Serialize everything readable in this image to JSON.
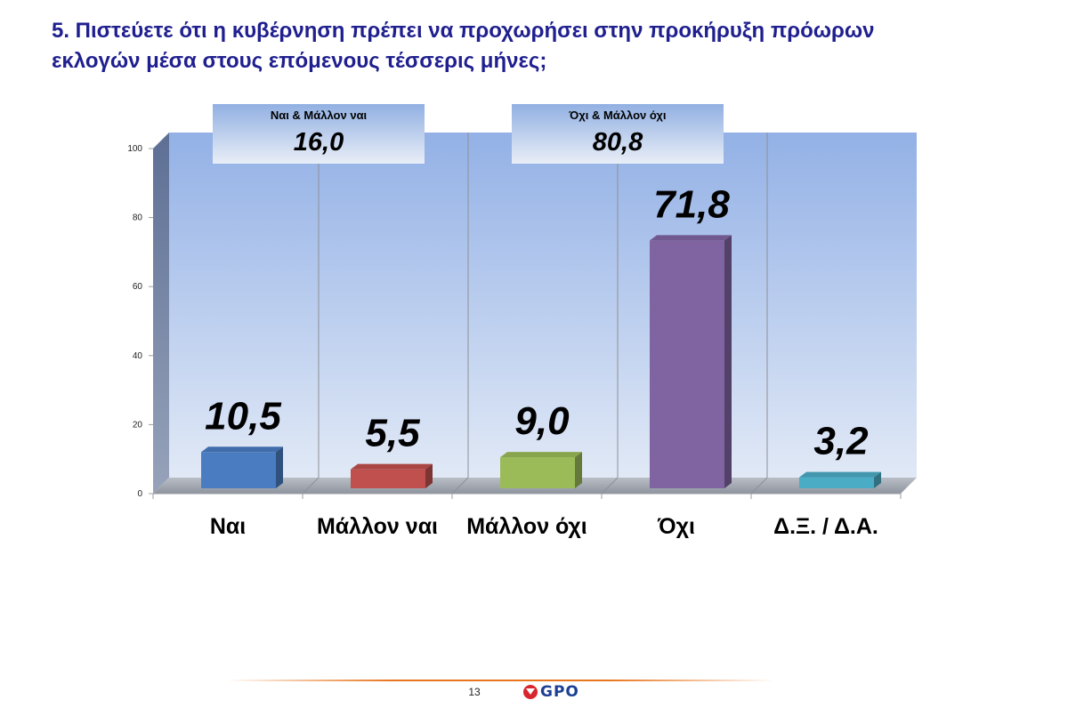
{
  "header": {
    "title": "5. Πιστεύετε ότι η κυβέρνηση πρέπει να προχωρήσει στην προκήρυξη πρόωρων εκλογών μέσα στους επόμενους τέσσερις μήνες;"
  },
  "chart_data": {
    "type": "bar",
    "categories": [
      "Ναι",
      "Μάλλον ναι",
      "Μάλλον όχι",
      "Όχι",
      "Δ.Ξ. / Δ.Α."
    ],
    "values": [
      10.5,
      5.5,
      9.0,
      71.8,
      3.2
    ],
    "value_labels": [
      "10,5",
      "5,5",
      "9,0",
      "71,8",
      "3,2"
    ],
    "colors": [
      "#4a7cc2",
      "#c0504d",
      "#9bbb59",
      "#8064a2",
      "#4bacc6"
    ],
    "ylim": [
      0,
      100
    ],
    "yticks": [
      0,
      20,
      40,
      60,
      80,
      100
    ],
    "grid": false,
    "annotations": [
      {
        "label": "Ναι & Μάλλον ναι",
        "value": "16,0"
      },
      {
        "label": "Όχι & Μάλλον όχι",
        "value": "80,8"
      }
    ]
  },
  "footer": {
    "page_number": "13",
    "logo_text": "GPO",
    "accent_color": "#e8761f"
  }
}
